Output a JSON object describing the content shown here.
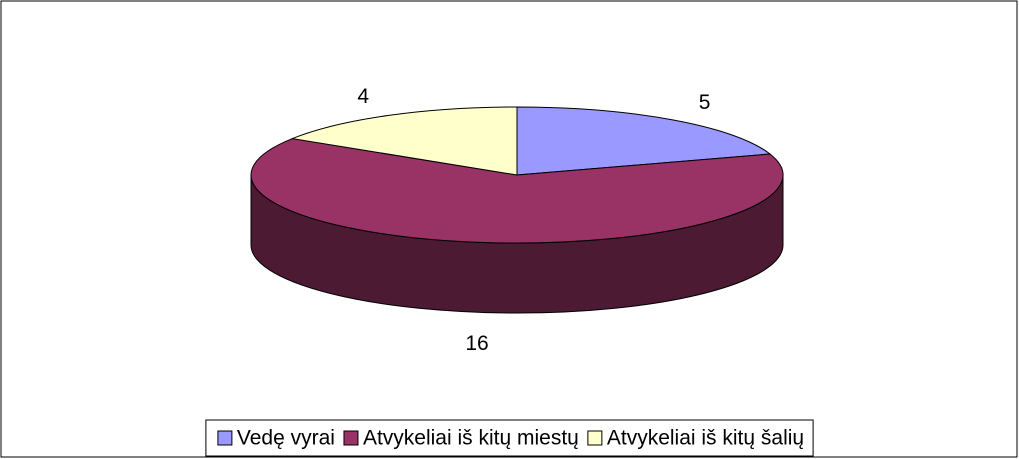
{
  "chart_data": {
    "type": "pie3d",
    "categories": [
      "Vedę vyrai",
      "Atvykeliai iš kitų miestų",
      "Atvykeliai iš kitų šalių"
    ],
    "values": [
      5,
      16,
      4
    ],
    "colors": [
      "#9999ff",
      "#993366",
      "#ffffcc"
    ],
    "legend": "bottom"
  }
}
